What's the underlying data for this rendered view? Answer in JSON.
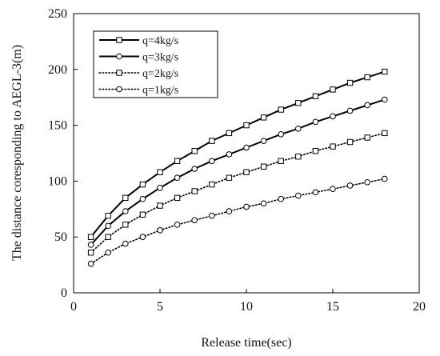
{
  "chart_data": {
    "type": "line",
    "xlabel": "Release time(sec)",
    "ylabel": "The distance coresponding to AEGL-3(m)",
    "xlim": [
      0,
      20
    ],
    "ylim": [
      0,
      250
    ],
    "xticks": [
      "0",
      "5",
      "10",
      "15",
      "20"
    ],
    "yticks": [
      "0",
      "50",
      "100",
      "150",
      "200",
      "250"
    ],
    "grid": false,
    "legend_position": "top-left",
    "x": [
      1,
      2,
      3,
      4,
      5,
      6,
      7,
      8,
      9,
      10,
      11,
      12,
      13,
      14,
      15,
      16,
      17,
      18
    ],
    "series": [
      {
        "name": "q=4kg/s",
        "style": "solid",
        "marker": "square",
        "values": [
          50,
          69,
          85,
          97,
          108,
          118,
          127,
          136,
          143,
          150,
          157,
          164,
          170,
          176,
          182,
          188,
          193,
          198
        ]
      },
      {
        "name": "q=3kg/s",
        "style": "solid",
        "marker": "circle",
        "values": [
          43,
          60,
          73,
          84,
          94,
          103,
          111,
          118,
          124,
          130,
          136,
          142,
          147,
          153,
          158,
          163,
          168,
          173
        ]
      },
      {
        "name": "q=2kg/s",
        "style": "dotted",
        "marker": "square",
        "values": [
          36,
          50,
          61,
          70,
          78,
          85,
          91,
          97,
          103,
          108,
          113,
          118,
          122,
          127,
          131,
          135,
          139,
          143
        ]
      },
      {
        "name": "q=1kg/s",
        "style": "dotted",
        "marker": "circle",
        "values": [
          26,
          36,
          44,
          50,
          56,
          61,
          65,
          69,
          73,
          77,
          80,
          84,
          87,
          90,
          93,
          96,
          99,
          102
        ]
      }
    ]
  }
}
